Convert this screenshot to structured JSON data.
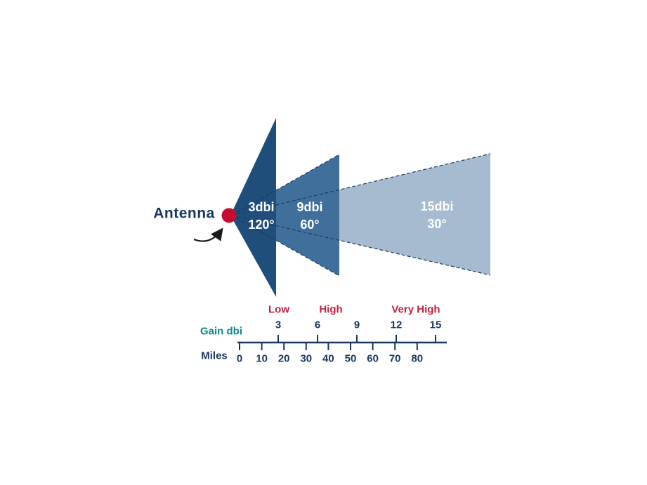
{
  "chart_data": {
    "type": "diagram",
    "antenna_label": "Antenna",
    "wedges": [
      {
        "gain_label": "3dbi",
        "angle_label": "120°",
        "gain_dbi": 3,
        "beamwidth_deg": 120
      },
      {
        "gain_label": "9dbi",
        "angle_label": "60°",
        "gain_dbi": 9,
        "beamwidth_deg": 60
      },
      {
        "gain_label": "15dbi",
        "angle_label": "30°",
        "gain_dbi": 15,
        "beamwidth_deg": 30
      }
    ],
    "bands": [
      "Low",
      "High",
      "Very High"
    ],
    "gain_axis": {
      "label": "Gain dbi",
      "ticks": [
        3,
        6,
        9,
        12,
        15
      ]
    },
    "miles_axis": {
      "label": "Miles",
      "ticks": [
        0,
        10,
        20,
        30,
        40,
        50,
        60,
        70,
        80
      ]
    }
  },
  "colors": {
    "wedge_dark": "#1f4e7b",
    "wedge_medium": "#3f6f9a",
    "wedge_light": "#a6bbd0",
    "edge_line": "#1a3c63",
    "dot_red": "#c60c30",
    "navy_text": "#17365f",
    "band_red": "#c41e40",
    "teal": "#0e8a8e",
    "arrow_black": "#1a1a1a",
    "background": "#ffffff"
  }
}
